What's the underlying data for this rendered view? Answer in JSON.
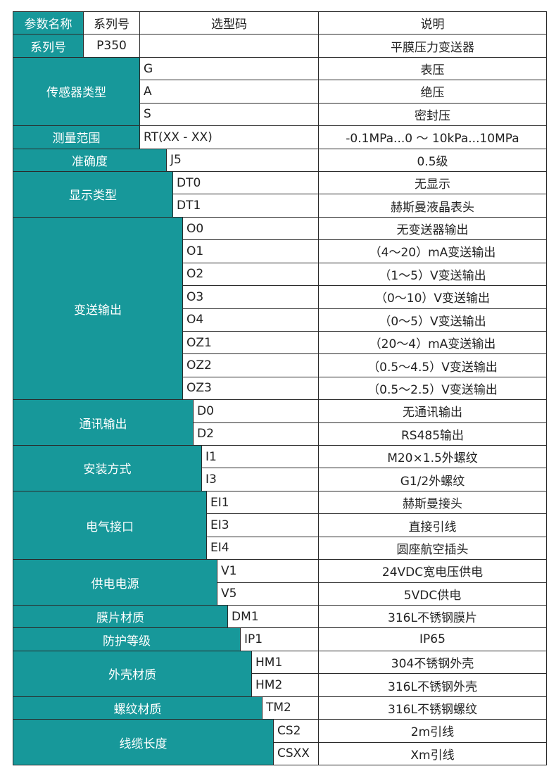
{
  "header": [
    "参数名称",
    "系列号",
    "选型码",
    "说明"
  ],
  "series_row": {
    "label": "系列号",
    "code": "P350",
    "description": "平膜压力变送器"
  },
  "groups": [
    {
      "name": "传感器类型",
      "options": [
        {
          "code": "G",
          "description": "表压"
        },
        {
          "code": "A",
          "description": "绝压"
        },
        {
          "code": "S",
          "description": "密封压"
        }
      ]
    },
    {
      "name": "测量范围",
      "options": [
        {
          "code": "RT(XX - XX)",
          "description": "-0.1MPa...0 ～ 10kPa...10MPa"
        }
      ]
    },
    {
      "name": "准确度",
      "options": [
        {
          "code": "J5",
          "description": "0.5级"
        }
      ]
    },
    {
      "name": "显示类型",
      "options": [
        {
          "code": "DT0",
          "description": "无显示"
        },
        {
          "code": "DT1",
          "description": "赫斯曼液晶表头"
        }
      ]
    },
    {
      "name": "变送输出",
      "options": [
        {
          "code": "O0",
          "description": "无变送器输出"
        },
        {
          "code": "O1",
          "description": "（4～20）mA变送输出"
        },
        {
          "code": "O2",
          "description": "（1～5）V变送输出"
        },
        {
          "code": "O3",
          "description": "（0～10）V变送输出"
        },
        {
          "code": "O4",
          "description": "（0～5）V变送输出"
        },
        {
          "code": "OZ1",
          "description": "（20～4）mA变送输出"
        },
        {
          "code": "OZ2",
          "description": "（0.5～4.5）V变送输出"
        },
        {
          "code": "OZ3",
          "description": "（0.5～2.5）V变送输出"
        }
      ]
    },
    {
      "name": "通讯输出",
      "options": [
        {
          "code": "D0",
          "description": "无通讯输出"
        },
        {
          "code": "D2",
          "description": "RS485输出"
        }
      ]
    },
    {
      "name": "安装方式",
      "options": [
        {
          "code": "I1",
          "description": "M20×1.5外螺纹"
        },
        {
          "code": "I3",
          "description": "G1/2外螺纹"
        }
      ]
    },
    {
      "name": "电气接口",
      "options": [
        {
          "code": "EI1",
          "description": "赫斯曼接头"
        },
        {
          "code": "EI3",
          "description": "直接引线"
        },
        {
          "code": "EI4",
          "description": "圆座航空插头"
        }
      ]
    },
    {
      "name": "供电电源",
      "options": [
        {
          "code": "V1",
          "description": "24VDC宽电压供电"
        },
        {
          "code": "V5",
          "description": "5VDC供电"
        }
      ]
    },
    {
      "name": "膜片材质",
      "options": [
        {
          "code": "DM1",
          "description": "316L不锈钢膜片"
        }
      ]
    },
    {
      "name": "防护等级",
      "options": [
        {
          "code": "IP1",
          "description": "IP65"
        }
      ]
    },
    {
      "name": "外壳材质",
      "options": [
        {
          "code": "HM1",
          "description": "304不锈钢外壳"
        },
        {
          "code": "HM2",
          "description": "316L不锈钢外壳"
        }
      ]
    },
    {
      "name": "螺纹材质",
      "options": [
        {
          "code": "TM2",
          "description": "316L不锈钢螺纹"
        }
      ]
    },
    {
      "name": "线缆长度",
      "options": [
        {
          "code": "CS2",
          "description": "2m引线"
        },
        {
          "code": "CSXX",
          "description": "Xm引线"
        }
      ]
    }
  ]
}
